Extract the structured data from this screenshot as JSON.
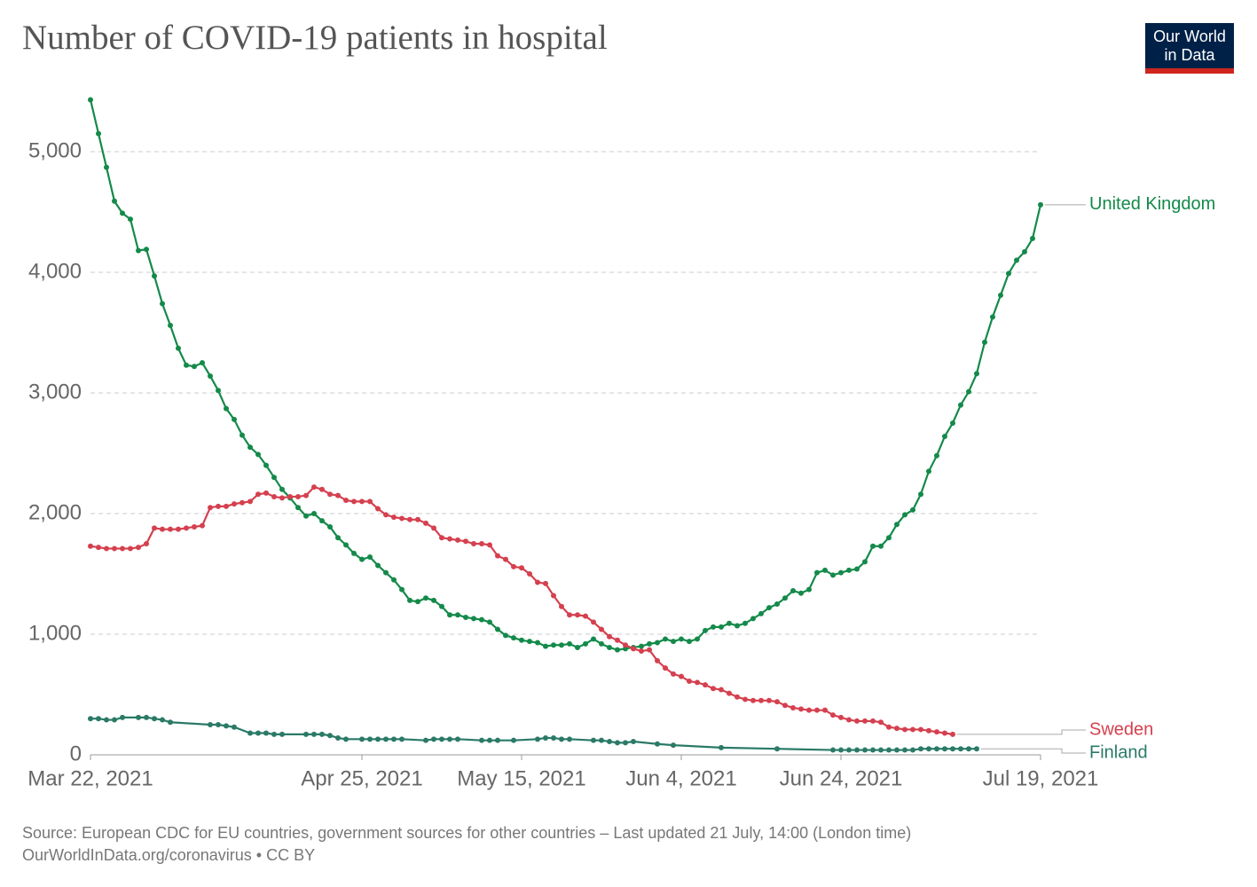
{
  "chart_data": {
    "type": "line",
    "title": "Number of COVID-19 patients in hospital",
    "source": [
      "Source: European CDC for EU countries, government sources for other countries – Last updated 21 July, 14:00 (London time)",
      "OurWorldInData.org/coronavirus • CC BY"
    ],
    "logo": [
      "Our World",
      "in Data"
    ],
    "xlim": [
      "2021-03-22",
      "2021-07-19"
    ],
    "xticks": [
      {
        "value": "2021-03-22",
        "label": "Mar 22, 2021"
      },
      {
        "value": "2021-04-25",
        "label": "Apr 25, 2021"
      },
      {
        "value": "2021-05-15",
        "label": "May 15, 2021"
      },
      {
        "value": "2021-06-04",
        "label": "Jun 4, 2021"
      },
      {
        "value": "2021-06-24",
        "label": "Jun 24, 2021"
      },
      {
        "value": "2021-07-19",
        "label": "Jul 19, 2021"
      }
    ],
    "ylim": [
      0,
      5500
    ],
    "yticks": [
      0,
      {
        "value": 1000,
        "label": "1,000"
      },
      {
        "value": 2000,
        "label": "2,000"
      },
      {
        "value": 3000,
        "label": "3,000"
      },
      {
        "value": 4000,
        "label": "4,000"
      },
      {
        "value": 5000,
        "label": "5,000"
      }
    ],
    "grid": true,
    "series": [
      {
        "name": "United Kingdom",
        "color": "#148a4a",
        "x": [
          "2021-03-22",
          "2021-03-23",
          "2021-03-24",
          "2021-03-25",
          "2021-03-26",
          "2021-03-27",
          "2021-03-28",
          "2021-03-29",
          "2021-03-30",
          "2021-03-31",
          "2021-04-01",
          "2021-04-02",
          "2021-04-03",
          "2021-04-04",
          "2021-04-05",
          "2021-04-06",
          "2021-04-07",
          "2021-04-08",
          "2021-04-09",
          "2021-04-10",
          "2021-04-11",
          "2021-04-12",
          "2021-04-13",
          "2021-04-14",
          "2021-04-15",
          "2021-04-16",
          "2021-04-17",
          "2021-04-18",
          "2021-04-19",
          "2021-04-20",
          "2021-04-21",
          "2021-04-22",
          "2021-04-23",
          "2021-04-24",
          "2021-04-25",
          "2021-04-26",
          "2021-04-27",
          "2021-04-28",
          "2021-04-29",
          "2021-04-30",
          "2021-05-01",
          "2021-05-02",
          "2021-05-03",
          "2021-05-04",
          "2021-05-05",
          "2021-05-06",
          "2021-05-07",
          "2021-05-08",
          "2021-05-09",
          "2021-05-10",
          "2021-05-11",
          "2021-05-12",
          "2021-05-13",
          "2021-05-14",
          "2021-05-15",
          "2021-05-16",
          "2021-05-17",
          "2021-05-18",
          "2021-05-19",
          "2021-05-20",
          "2021-05-21",
          "2021-05-22",
          "2021-05-23",
          "2021-05-24",
          "2021-05-25",
          "2021-05-26",
          "2021-05-27",
          "2021-05-28",
          "2021-05-29",
          "2021-05-30",
          "2021-05-31",
          "2021-06-01",
          "2021-06-02",
          "2021-06-03",
          "2021-06-04",
          "2021-06-05",
          "2021-06-06",
          "2021-06-07",
          "2021-06-08",
          "2021-06-09",
          "2021-06-10",
          "2021-06-11",
          "2021-06-12",
          "2021-06-13",
          "2021-06-14",
          "2021-06-15",
          "2021-06-16",
          "2021-06-17",
          "2021-06-18",
          "2021-06-19",
          "2021-06-20",
          "2021-06-21",
          "2021-06-22",
          "2021-06-23",
          "2021-06-24",
          "2021-06-25",
          "2021-06-26",
          "2021-06-27",
          "2021-06-28",
          "2021-06-29",
          "2021-06-30",
          "2021-07-01",
          "2021-07-02",
          "2021-07-03",
          "2021-07-04",
          "2021-07-05",
          "2021-07-06",
          "2021-07-07",
          "2021-07-08",
          "2021-07-09",
          "2021-07-10",
          "2021-07-11",
          "2021-07-12",
          "2021-07-13",
          "2021-07-14",
          "2021-07-15",
          "2021-07-16",
          "2021-07-17",
          "2021-07-18",
          "2021-07-19"
        ],
        "values": [
          5430,
          5150,
          4870,
          4590,
          4490,
          4440,
          4180,
          4190,
          3970,
          3740,
          3560,
          3370,
          3230,
          3220,
          3250,
          3140,
          3020,
          2870,
          2780,
          2650,
          2550,
          2490,
          2400,
          2300,
          2200,
          2130,
          2050,
          1980,
          2000,
          1940,
          1890,
          1800,
          1740,
          1670,
          1620,
          1640,
          1570,
          1510,
          1450,
          1370,
          1280,
          1270,
          1300,
          1280,
          1230,
          1160,
          1160,
          1140,
          1130,
          1120,
          1100,
          1040,
          990,
          970,
          950,
          940,
          930,
          900,
          910,
          910,
          920,
          890,
          920,
          960,
          920,
          890,
          870,
          880,
          890,
          900,
          920,
          930,
          960,
          940,
          960,
          940,
          960,
          1030,
          1060,
          1060,
          1090,
          1070,
          1090,
          1130,
          1170,
          1220,
          1250,
          1300,
          1360,
          1340,
          1370,
          1510,
          1530,
          1490,
          1510,
          1530,
          1540,
          1600,
          1730,
          1730,
          1800,
          1910,
          1990,
          2030,
          2160,
          2350,
          2480,
          2640,
          2750,
          2900,
          3010,
          3160,
          3420,
          3630,
          3810,
          3990,
          4100,
          4170,
          4280,
          4560
        ]
      },
      {
        "name": "Sweden",
        "color": "#d5404f",
        "x": [
          "2021-03-22",
          "2021-03-23",
          "2021-03-24",
          "2021-03-25",
          "2021-03-26",
          "2021-03-27",
          "2021-03-28",
          "2021-03-29",
          "2021-03-30",
          "2021-03-31",
          "2021-04-01",
          "2021-04-02",
          "2021-04-03",
          "2021-04-04",
          "2021-04-05",
          "2021-04-06",
          "2021-04-07",
          "2021-04-08",
          "2021-04-09",
          "2021-04-10",
          "2021-04-11",
          "2021-04-12",
          "2021-04-13",
          "2021-04-14",
          "2021-04-15",
          "2021-04-16",
          "2021-04-17",
          "2021-04-18",
          "2021-04-19",
          "2021-04-20",
          "2021-04-21",
          "2021-04-22",
          "2021-04-23",
          "2021-04-24",
          "2021-04-25",
          "2021-04-26",
          "2021-04-27",
          "2021-04-28",
          "2021-04-29",
          "2021-04-30",
          "2021-05-01",
          "2021-05-02",
          "2021-05-03",
          "2021-05-04",
          "2021-05-05",
          "2021-05-06",
          "2021-05-07",
          "2021-05-08",
          "2021-05-09",
          "2021-05-10",
          "2021-05-11",
          "2021-05-12",
          "2021-05-13",
          "2021-05-14",
          "2021-05-15",
          "2021-05-16",
          "2021-05-17",
          "2021-05-18",
          "2021-05-19",
          "2021-05-20",
          "2021-05-21",
          "2021-05-22",
          "2021-05-23",
          "2021-05-24",
          "2021-05-25",
          "2021-05-26",
          "2021-05-27",
          "2021-05-28",
          "2021-05-29",
          "2021-05-30",
          "2021-05-31",
          "2021-06-01",
          "2021-06-02",
          "2021-06-03",
          "2021-06-04",
          "2021-06-05",
          "2021-06-06",
          "2021-06-07",
          "2021-06-08",
          "2021-06-09",
          "2021-06-10",
          "2021-06-11",
          "2021-06-12",
          "2021-06-13",
          "2021-06-14",
          "2021-06-15",
          "2021-06-16",
          "2021-06-17",
          "2021-06-18",
          "2021-06-19",
          "2021-06-20",
          "2021-06-21",
          "2021-06-22",
          "2021-06-23",
          "2021-06-24",
          "2021-06-25",
          "2021-06-26",
          "2021-06-27",
          "2021-06-28",
          "2021-06-29",
          "2021-06-30",
          "2021-07-01",
          "2021-07-02",
          "2021-07-03",
          "2021-07-04",
          "2021-07-05",
          "2021-07-06",
          "2021-07-07",
          "2021-07-08"
        ],
        "values": [
          1730,
          1720,
          1710,
          1710,
          1710,
          1710,
          1720,
          1750,
          1880,
          1870,
          1870,
          1870,
          1880,
          1890,
          1900,
          2050,
          2060,
          2060,
          2080,
          2090,
          2100,
          2160,
          2170,
          2140,
          2130,
          2140,
          2140,
          2150,
          2220,
          2200,
          2160,
          2150,
          2110,
          2100,
          2100,
          2100,
          2040,
          1990,
          1970,
          1960,
          1950,
          1950,
          1920,
          1880,
          1800,
          1790,
          1780,
          1770,
          1750,
          1750,
          1740,
          1650,
          1620,
          1560,
          1550,
          1500,
          1430,
          1420,
          1320,
          1230,
          1160,
          1160,
          1150,
          1100,
          1040,
          980,
          950,
          910,
          880,
          860,
          870,
          780,
          720,
          670,
          650,
          610,
          600,
          580,
          550,
          540,
          510,
          480,
          460,
          450,
          450,
          450,
          440,
          410,
          390,
          380,
          370,
          370,
          370,
          330,
          310,
          290,
          280,
          280,
          280,
          270,
          230,
          220,
          210,
          210,
          210,
          200,
          190,
          180,
          170
        ]
      },
      {
        "name": "Finland",
        "color": "#2a7a67",
        "x": [
          "2021-03-22",
          "2021-03-23",
          "2021-03-24",
          "2021-03-25",
          "2021-03-26",
          "2021-03-28",
          "2021-03-29",
          "2021-03-30",
          "2021-03-31",
          "2021-04-01",
          "2021-04-06",
          "2021-04-07",
          "2021-04-08",
          "2021-04-09",
          "2021-04-11",
          "2021-04-12",
          "2021-04-13",
          "2021-04-14",
          "2021-04-15",
          "2021-04-18",
          "2021-04-19",
          "2021-04-20",
          "2021-04-21",
          "2021-04-22",
          "2021-04-23",
          "2021-04-25",
          "2021-04-26",
          "2021-04-27",
          "2021-04-28",
          "2021-04-29",
          "2021-04-30",
          "2021-05-03",
          "2021-05-04",
          "2021-05-05",
          "2021-05-06",
          "2021-05-07",
          "2021-05-10",
          "2021-05-11",
          "2021-05-12",
          "2021-05-14",
          "2021-05-17",
          "2021-05-18",
          "2021-05-19",
          "2021-05-20",
          "2021-05-21",
          "2021-05-24",
          "2021-05-25",
          "2021-05-26",
          "2021-05-27",
          "2021-05-28",
          "2021-05-29",
          "2021-06-01",
          "2021-06-03",
          "2021-06-09",
          "2021-06-16",
          "2021-06-23",
          "2021-06-24",
          "2021-06-25",
          "2021-06-26",
          "2021-06-27",
          "2021-06-28",
          "2021-06-29",
          "2021-06-30",
          "2021-07-01",
          "2021-07-02",
          "2021-07-03",
          "2021-07-04",
          "2021-07-05",
          "2021-07-06",
          "2021-07-07",
          "2021-07-08",
          "2021-07-09",
          "2021-07-10",
          "2021-07-11"
        ],
        "values": [
          300,
          300,
          290,
          290,
          310,
          310,
          310,
          300,
          290,
          270,
          250,
          250,
          240,
          230,
          180,
          180,
          180,
          170,
          170,
          170,
          170,
          170,
          160,
          140,
          130,
          130,
          130,
          130,
          130,
          130,
          130,
          120,
          130,
          130,
          130,
          130,
          120,
          120,
          120,
          120,
          130,
          140,
          140,
          130,
          130,
          120,
          120,
          110,
          100,
          100,
          110,
          90,
          80,
          60,
          50,
          40,
          40,
          40,
          40,
          40,
          40,
          40,
          40,
          40,
          40,
          40,
          50,
          50,
          50,
          50,
          50,
          50,
          50,
          50
        ]
      }
    ]
  }
}
